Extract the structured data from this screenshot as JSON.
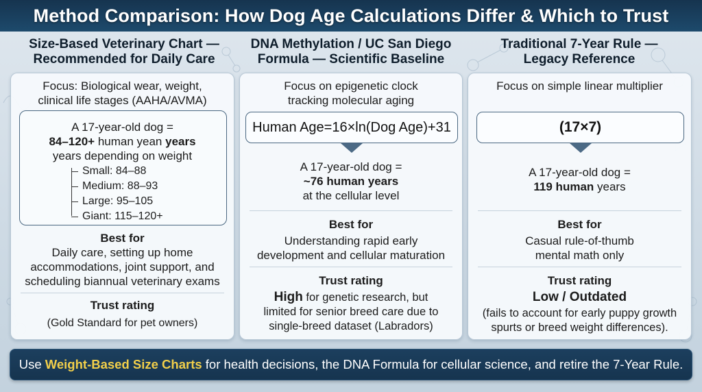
{
  "title": "Method Comparison: How Dog Age Calculations Differ & Which to Trust",
  "columns": [
    {
      "heading_line1": "Size-Based Veterinary Chart —",
      "heading_line2": "Recommended for Daily Care",
      "focus_line1": "Focus: Biological wear, weight,",
      "focus_line2": "clinical life stages (AAHA/AVMA)",
      "example_line1": "A 17-year-old dog =",
      "example_bold": "84–120+",
      "example_mid": " human yean ",
      "example_bold2": "years",
      "example_line3": "years depending on weight",
      "breakdown": [
        "Small: 84–88",
        "Medium: 88–93",
        "Large: 95–105",
        "Giant: 115–120+"
      ],
      "best_for_label": "Best for",
      "best_for_line1": "Daily care, setting up home",
      "best_for_line2": "accommodations, joint support, and",
      "best_for_line3": "scheduling biannual veterinary exams",
      "trust_label": "Trust rating",
      "trust_line1": "(Gold Standard for pet owners)"
    },
    {
      "heading_line1": "DNA Methylation / UC San Diego",
      "heading_line2": "Formula — Scientific Baseline",
      "focus_line1": "Focus on epigenetic clock",
      "focus_line2": "tracking molecular aging",
      "formula": "Human Age=16×ln(Dog Age)+31",
      "example_line1": "A 17-year-old dog =",
      "example_bold": "~76 human years",
      "example_line3": "at the cellular level",
      "best_for_label": "Best for",
      "best_for_line1": "Understanding rapid early",
      "best_for_line2": "development and cellular maturation",
      "trust_label": "Trust rating",
      "trust_bold": "High",
      "trust_rest": " for genetic research, but",
      "trust_line2": "limited for senior breed care due to",
      "trust_line3": "single-breed dataset (Labradors)"
    },
    {
      "heading_line1": "Traditional 7-Year Rule —",
      "heading_line2": "Legacy Reference",
      "focus_line1": "Focus on simple linear multiplier",
      "formula": "(17×7)",
      "example_line1": "A 17-year-old dog =",
      "example_bold": "119 human",
      "example_rest": " years",
      "best_for_label": "Best for",
      "best_for_line1": "Casual rule-of-thumb",
      "best_for_line2": "mental math only",
      "trust_label": "Trust rating",
      "trust_bold": "Low / Outdated",
      "trust_line2": "(fails to account for early puppy growth",
      "trust_line3": "spurts or breed weight differences)."
    }
  ],
  "banner": {
    "prefix": "Use ",
    "highlight": "Weight-Based Size Charts",
    "suffix": " for health decisions, the DNA Formula for cellular science, and retire the 7-Year Rule."
  },
  "colors": {
    "title_bar": "#16344f",
    "banner_highlight": "#f2cf4a",
    "card_border": "#b6c6d4",
    "arrow": "#4c6a85"
  }
}
